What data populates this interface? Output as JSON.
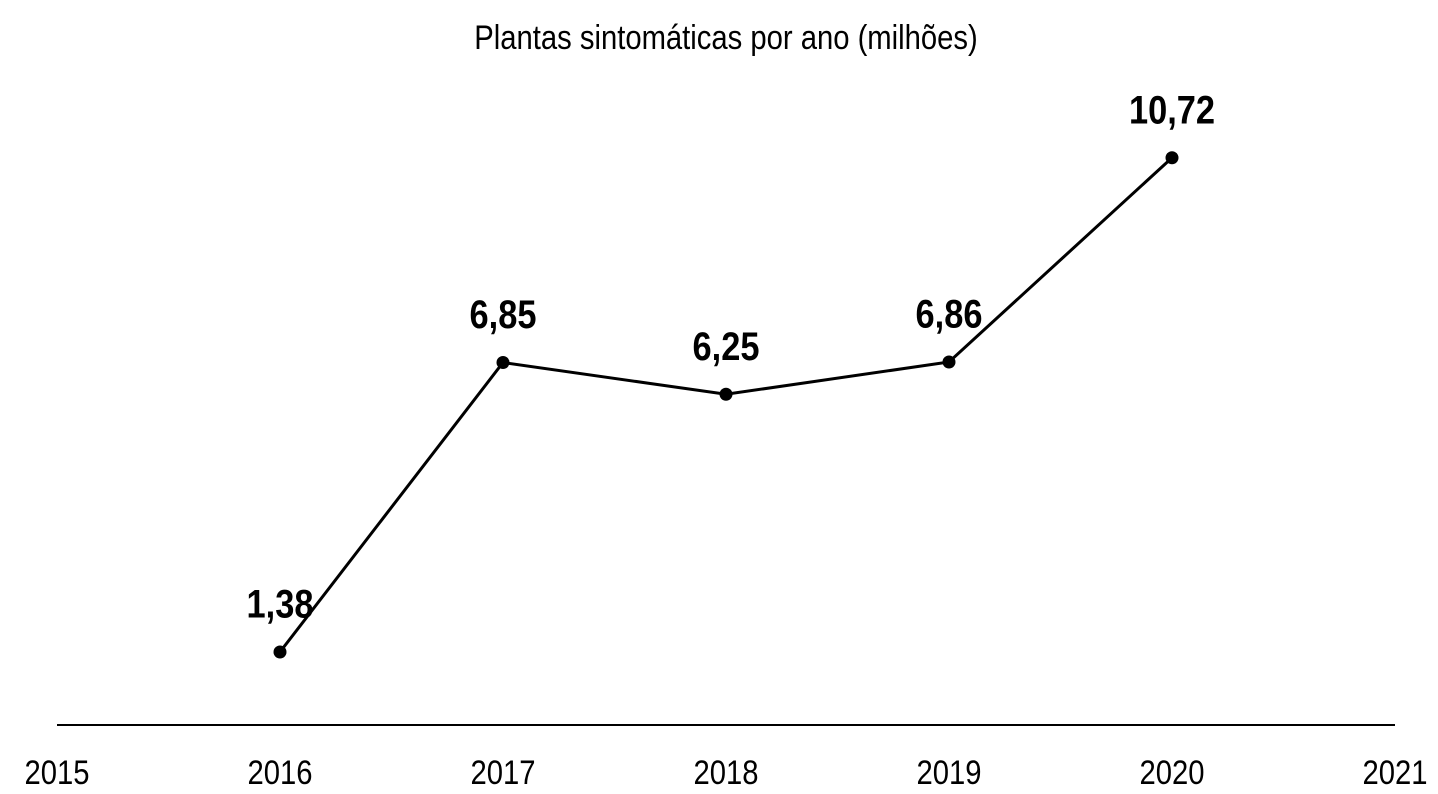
{
  "chart_data": {
    "type": "line",
    "title": "Plantas sintomáticas por ano (milhões)",
    "x": [
      2016,
      2017,
      2018,
      2019,
      2020
    ],
    "series": [
      {
        "color": "#000000",
        "values": [
          1.38,
          6.85,
          6.25,
          6.86,
          10.72
        ],
        "value_labels": [
          "1,38",
          "6,85",
          "6,25",
          "6,86",
          "10,72"
        ]
      }
    ],
    "xlim": [
      2015,
      2021
    ],
    "xticks": [
      2015,
      2016,
      2017,
      2018,
      2019,
      2020,
      2021
    ],
    "ylim": [
      0,
      12
    ]
  }
}
